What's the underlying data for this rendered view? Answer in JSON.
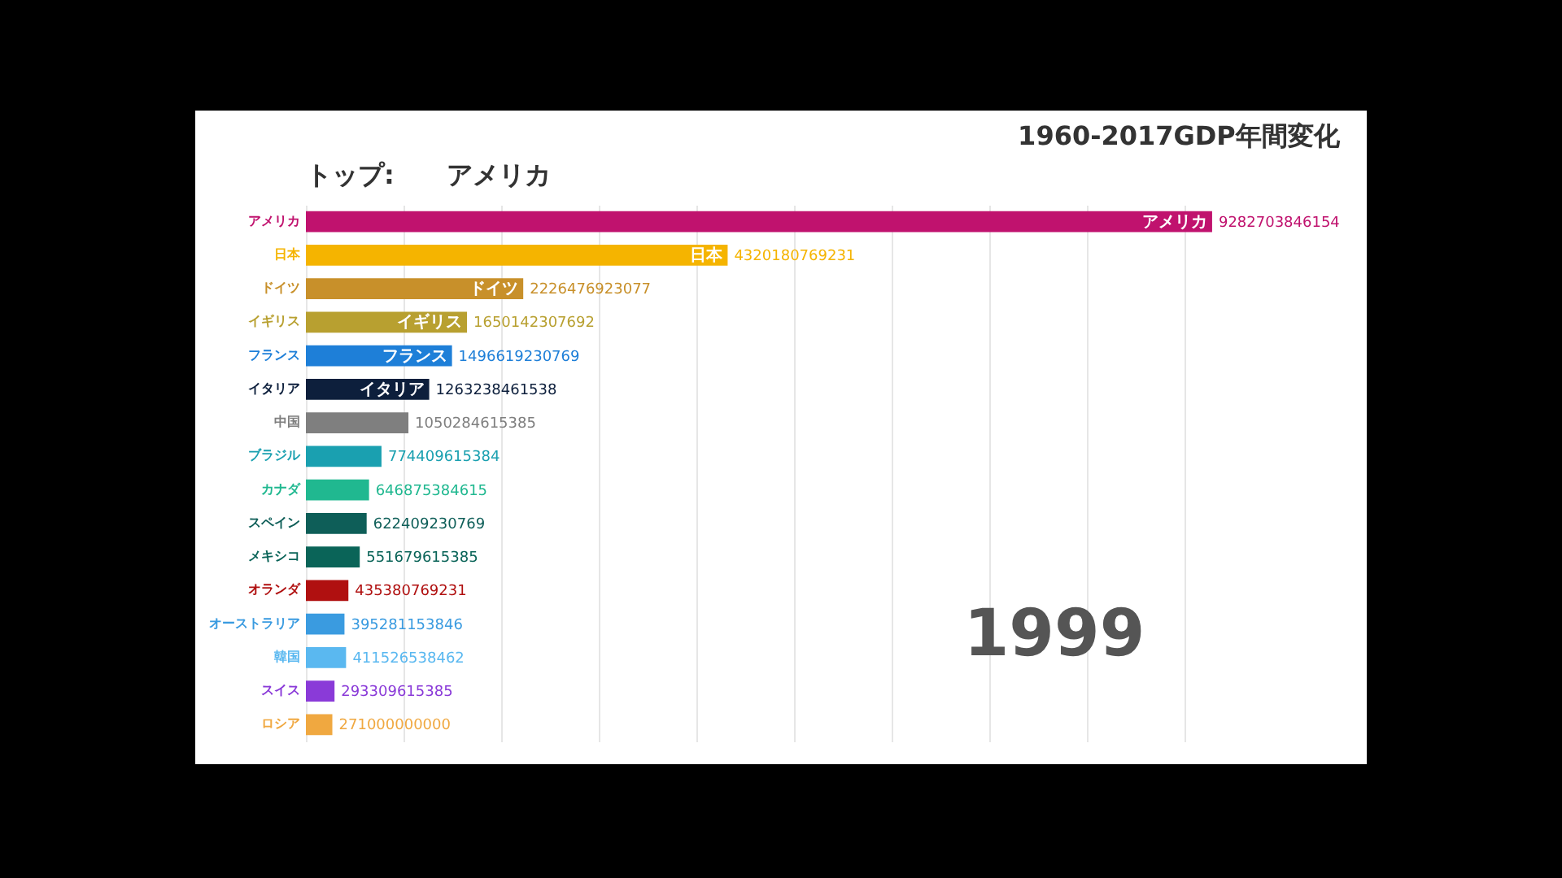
{
  "chart_data": {
    "type": "bar",
    "orientation": "horizontal",
    "title": "1960-2017GDP年間変化",
    "categories": [
      "アメリカ",
      "日本",
      "ドイツ",
      "イギリス",
      "フランス",
      "イタリア",
      "中国",
      "ブラジル",
      "カナダ",
      "スペイン",
      "メキシコ",
      "オランダ",
      "オーストラリア",
      "韓国",
      "スイス",
      "ロシア"
    ],
    "values": [
      9282703846154,
      4320180769231,
      2226476923077,
      1650142307692,
      1496619230769,
      1263238461538,
      1050284615385,
      774409615384,
      646875384615,
      622409230769,
      551679615385,
      435380769231,
      395281153846,
      411526538462,
      293309615385,
      271000000000
    ],
    "colors": [
      "#c0126e",
      "#f5b400",
      "#c8902a",
      "#b8a030",
      "#1e7fd8",
      "#0d1f3c",
      "#7f7f7f",
      "#1aa0b0",
      "#20b890",
      "#0e5e58",
      "#0a6458",
      "#b01010",
      "#3a9be0",
      "#5ab8f0",
      "#8a3ad8",
      "#f0a840"
    ],
    "data_labels": true,
    "xticks": [
      {
        "value": 0,
        "label": null
      },
      {
        "value": 1000000000000,
        "label": null
      },
      {
        "value": 2000000000000,
        "label": null
      },
      {
        "value": 3000000000000,
        "label": null
      },
      {
        "value": 4000000000000,
        "label": null
      },
      {
        "value": 5000000000000,
        "label": null
      },
      {
        "value": 6000000000000,
        "label": null
      },
      {
        "value": 7000000000000,
        "label": null
      },
      {
        "value": 8000000000000,
        "label": null
      },
      {
        "value": 9000000000000,
        "label": null
      }
    ],
    "grid": "x",
    "tick_labels": "y",
    "annotations": [
      "トップ:　　アメリカ",
      "1999",
      {
        "text": "アメリカ",
        "x": 9282703846154,
        "y": "アメリカ"
      },
      {
        "text": "日本",
        "x": 4320180769231,
        "y": "日本"
      },
      {
        "text": "ドイツ",
        "x": 2226476923077,
        "y": "ドイツ"
      },
      {
        "text": "イギリス",
        "x": 1650142307692,
        "y": "イギリス"
      },
      {
        "text": "フランス",
        "x": 1496619230769,
        "y": "フランス"
      },
      {
        "text": "イタリア",
        "x": 1263238461538,
        "y": "イタリア"
      }
    ]
  }
}
